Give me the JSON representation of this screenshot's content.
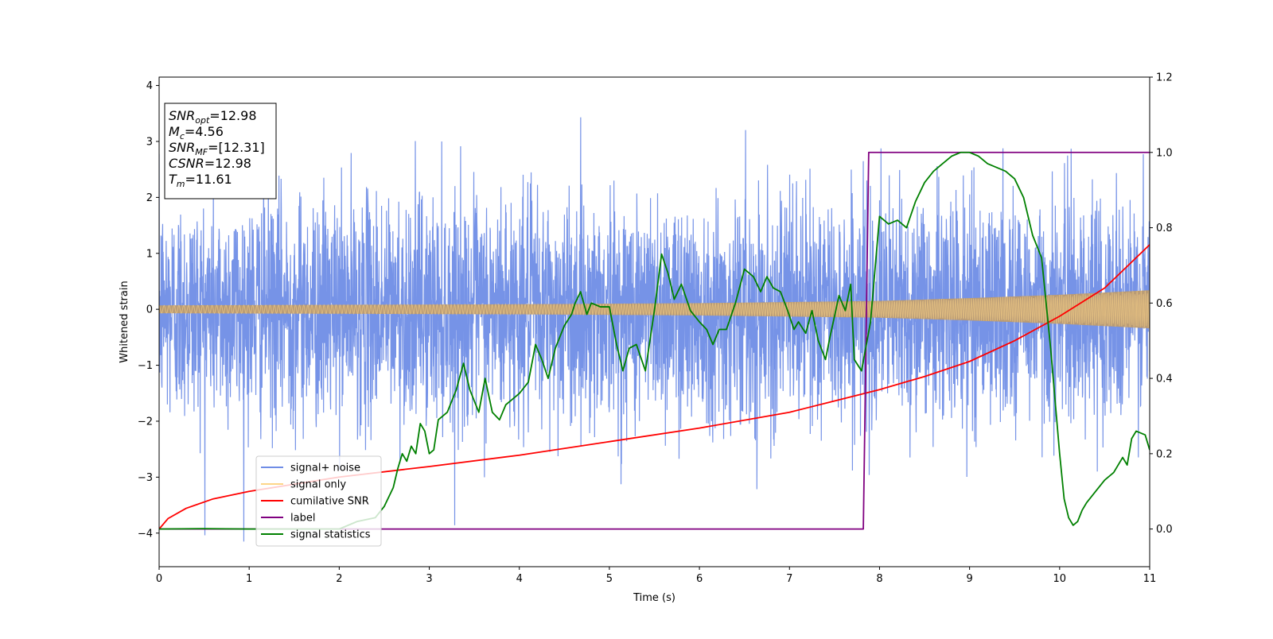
{
  "chart_data": {
    "type": "line",
    "xlabel": "Time (s)",
    "ylabel": "Whitened strain",
    "xlim": [
      0,
      11
    ],
    "ylim": [
      -4.6,
      4.15
    ],
    "y2lim": [
      -0.1,
      1.2
    ],
    "x_ticks": [
      "0",
      "1",
      "2",
      "3",
      "4",
      "5",
      "6",
      "7",
      "8",
      "9",
      "10",
      "11"
    ],
    "y_ticks": [
      "−4",
      "−3",
      "−2",
      "−1",
      "0",
      "1",
      "2",
      "3",
      "4"
    ],
    "y2_ticks": [
      "0.0",
      "0.2",
      "0.4",
      "0.6",
      "0.8",
      "1.0",
      "1.2"
    ],
    "grid": false,
    "legend_position": "lower-left",
    "info_box": {
      "position": "top-left",
      "lines": [
        {
          "base": "SNR",
          "sub": "opt",
          "value": "=12.98"
        },
        {
          "base": "M",
          "sub": "c",
          "value": "=4.56"
        },
        {
          "base": "SNR",
          "sub": "MF",
          "value": "=[12.31]"
        },
        {
          "base": "CSNR",
          "sub": "",
          "value": "=12.98"
        },
        {
          "base": "T",
          "sub": "m",
          "value": "=11.61"
        }
      ]
    },
    "series": [
      {
        "name": "signal+ noise",
        "color": "#6f8de6",
        "axis": "left",
        "kind": "noise",
        "typical_abs_range": [
          -2.0,
          2.0
        ],
        "min": -4.15,
        "max": 3.78
      },
      {
        "name": "signal only",
        "color": "#fdd688",
        "axis": "left",
        "kind": "chirp-envelope",
        "envelope_x": [
          0,
          2,
          4,
          6,
          8,
          9,
          10,
          11
        ],
        "envelope_y": [
          0.07,
          0.08,
          0.09,
          0.11,
          0.15,
          0.2,
          0.26,
          0.34
        ]
      },
      {
        "name": "cumilative SNR",
        "color": "#ff0000",
        "axis": "right",
        "x": [
          0,
          0.1,
          0.3,
          0.6,
          1,
          2,
          3,
          4,
          5,
          6,
          7,
          8,
          8.5,
          9,
          9.5,
          10,
          10.5,
          11
        ],
        "y": [
          0.0,
          0.028,
          0.055,
          0.08,
          0.1,
          0.138,
          0.166,
          0.196,
          0.232,
          0.268,
          0.31,
          0.37,
          0.405,
          0.445,
          0.5,
          0.565,
          0.64,
          0.755
        ]
      },
      {
        "name": "label",
        "color": "#800080",
        "axis": "right",
        "x": [
          0,
          7.82,
          7.88,
          11
        ],
        "y": [
          0.0,
          0.0,
          1.0,
          1.0
        ]
      },
      {
        "name": "signal statistics",
        "color": "#008000",
        "axis": "right",
        "x": [
          0,
          0.5,
          1,
          1.5,
          2,
          2.2,
          2.4,
          2.5,
          2.6,
          2.65,
          2.7,
          2.75,
          2.8,
          2.85,
          2.9,
          2.95,
          3.0,
          3.05,
          3.1,
          3.2,
          3.3,
          3.38,
          3.45,
          3.55,
          3.62,
          3.7,
          3.78,
          3.85,
          3.9,
          4.0,
          4.1,
          4.18,
          4.25,
          4.32,
          4.4,
          4.5,
          4.58,
          4.62,
          4.68,
          4.75,
          4.8,
          4.9,
          5.0,
          5.08,
          5.15,
          5.22,
          5.3,
          5.4,
          5.5,
          5.58,
          5.65,
          5.72,
          5.8,
          5.9,
          6.0,
          6.08,
          6.15,
          6.22,
          6.3,
          6.4,
          6.5,
          6.6,
          6.68,
          6.75,
          6.82,
          6.9,
          6.98,
          7.05,
          7.1,
          7.18,
          7.25,
          7.32,
          7.4,
          7.45,
          7.55,
          7.62,
          7.68,
          7.72,
          7.8,
          7.9,
          8.0,
          8.1,
          8.2,
          8.3,
          8.4,
          8.5,
          8.6,
          8.7,
          8.8,
          8.9,
          9.0,
          9.1,
          9.2,
          9.3,
          9.4,
          9.5,
          9.6,
          9.7,
          9.8,
          9.9,
          10.0,
          10.05,
          10.1,
          10.15,
          10.2,
          10.25,
          10.3,
          10.4,
          10.5,
          10.6,
          10.7,
          10.75,
          10.8,
          10.85,
          10.95,
          11.0
        ],
        "y": [
          0.0,
          0.001,
          0.0,
          0.0,
          0.0,
          0.02,
          0.03,
          0.06,
          0.11,
          0.16,
          0.2,
          0.18,
          0.22,
          0.2,
          0.28,
          0.26,
          0.2,
          0.21,
          0.29,
          0.31,
          0.37,
          0.44,
          0.37,
          0.31,
          0.4,
          0.31,
          0.29,
          0.33,
          0.34,
          0.36,
          0.39,
          0.49,
          0.45,
          0.4,
          0.48,
          0.54,
          0.57,
          0.6,
          0.63,
          0.57,
          0.6,
          0.59,
          0.59,
          0.49,
          0.42,
          0.48,
          0.49,
          0.42,
          0.58,
          0.73,
          0.68,
          0.61,
          0.65,
          0.58,
          0.55,
          0.53,
          0.49,
          0.53,
          0.53,
          0.6,
          0.69,
          0.67,
          0.63,
          0.67,
          0.64,
          0.63,
          0.58,
          0.53,
          0.55,
          0.52,
          0.58,
          0.5,
          0.45,
          0.51,
          0.62,
          0.58,
          0.65,
          0.45,
          0.42,
          0.55,
          0.83,
          0.81,
          0.82,
          0.8,
          0.87,
          0.92,
          0.95,
          0.97,
          0.99,
          1.0,
          1.0,
          0.99,
          0.97,
          0.96,
          0.95,
          0.93,
          0.88,
          0.78,
          0.72,
          0.48,
          0.2,
          0.08,
          0.03,
          0.01,
          0.02,
          0.05,
          0.07,
          0.1,
          0.13,
          0.15,
          0.19,
          0.17,
          0.24,
          0.26,
          0.25,
          0.21
        ]
      }
    ]
  }
}
